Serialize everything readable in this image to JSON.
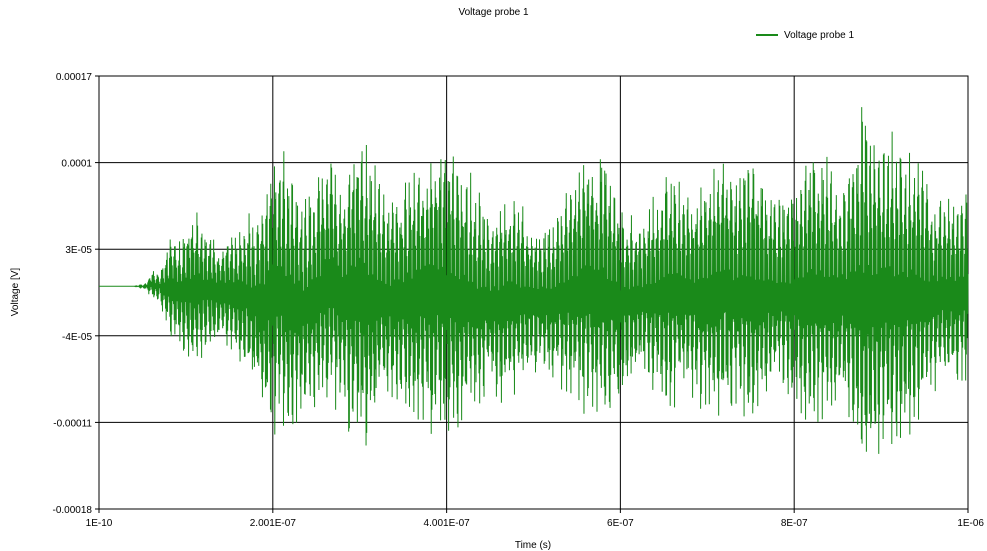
{
  "chart_data": {
    "type": "line",
    "title": "Voltage probe 1",
    "xlabel": "Time (s)",
    "ylabel": "Voltage [V]",
    "xlim": [
      1e-10,
      1e-06
    ],
    "ylim": [
      -0.00018,
      0.00017
    ],
    "x_ticks": [
      {
        "value": 1e-10,
        "label": "1E-10"
      },
      {
        "value": 2.001e-07,
        "label": "2.001E-07"
      },
      {
        "value": 4.001e-07,
        "label": "4.001E-07"
      },
      {
        "value": 6e-07,
        "label": "6E-07"
      },
      {
        "value": 8e-07,
        "label": "8E-07"
      },
      {
        "value": 1e-06,
        "label": "1E-06"
      }
    ],
    "y_ticks": [
      {
        "value": 0.00017,
        "label": "0.00017"
      },
      {
        "value": 0.0001,
        "label": "0.0001"
      },
      {
        "value": 3e-05,
        "label": "3E-05"
      },
      {
        "value": -4e-05,
        "label": "-4E-05"
      },
      {
        "value": -0.00011,
        "label": "-0.00011"
      },
      {
        "value": -0.00018,
        "label": "-0.00018"
      }
    ],
    "grid": true,
    "legend_position": "top-right",
    "series": [
      {
        "name": "Voltage probe 1",
        "color": "#1a8a1a",
        "envelope": {
          "x": [
            1e-10,
            4e-08,
            5e-08,
            5.5e-08,
            6e-08,
            6.5e-08,
            7e-08,
            7.5e-08,
            8.5e-08,
            9.5e-08,
            1.05e-07,
            1.1e-07,
            1.2e-07,
            1.35e-07,
            1.5e-07,
            1.65e-07,
            1.85e-07,
            2.05e-07,
            2.2e-07,
            2.35e-07,
            2.5e-07,
            2.65e-07,
            2.8e-07,
            3e-07,
            3.15e-07,
            3.3e-07,
            3.5e-07,
            3.7e-07,
            3.9e-07,
            4.1e-07,
            4.3e-07,
            4.5e-07,
            4.65e-07,
            4.8e-07,
            5e-07,
            5.2e-07,
            5.4e-07,
            5.6e-07,
            5.8e-07,
            6e-07,
            6.2e-07,
            6.4e-07,
            6.6e-07,
            6.8e-07,
            7e-07,
            7.2e-07,
            7.35e-07,
            7.5e-07,
            7.65e-07,
            7.8e-07,
            8e-07,
            8.2e-07,
            8.4e-07,
            8.6e-07,
            8.8e-07,
            8.9e-07,
            9e-07,
            9.2e-07,
            9.4e-07,
            9.6e-07,
            9.8e-07,
            1e-06
          ],
          "upper": [
            0.0,
            0.0,
            1e-06,
            4e-06,
            1.4e-05,
            1.2e-05,
            1e-05,
            2.5e-05,
            5e-05,
            4e-05,
            6e-05,
            6.5e-05,
            5.5e-05,
            4e-05,
            4.5e-05,
            5.5e-05,
            7e-05,
            0.000125,
            0.0001,
            8e-05,
            8.5e-05,
            0.00012,
            9e-05,
            0.00014,
            0.000105,
            7e-05,
            9e-05,
            0.00011,
            0.000125,
            0.000115,
            9e-05,
            6e-05,
            8e-05,
            7.5e-05,
            5e-05,
            6e-05,
            8e-05,
            0.000115,
            0.000115,
            7e-05,
            5.5e-05,
            8e-05,
            0.000105,
            8e-05,
            0.0001,
            0.000115,
            9e-05,
            0.00012,
            9e-05,
            7e-05,
            9e-05,
            0.00012,
            0.000105,
            9e-05,
            0.00016,
            0.000135,
            0.00013,
            0.000125,
            0.00011,
            8e-05,
            7.5e-05,
            8e-05
          ],
          "lower": [
            0.0,
            0.0,
            -1e-06,
            -4e-06,
            -1e-05,
            -1.2e-05,
            -1e-05,
            -3e-05,
            -5e-05,
            -5e-05,
            -6.5e-05,
            -7e-05,
            -6e-05,
            -5e-05,
            -5.5e-05,
            -6.5e-05,
            -0.0001,
            -0.000125,
            -0.00012,
            -0.00011,
            -0.000105,
            -0.0001,
            -0.000105,
            -0.000145,
            -0.000125,
            -9e-05,
            -0.000105,
            -0.00012,
            -0.000125,
            -0.000125,
            -0.00011,
            -8.5e-05,
            -0.0001,
            -9e-05,
            -7e-05,
            -8e-05,
            -9e-05,
            -0.00011,
            -0.000115,
            -9e-05,
            -7e-05,
            -9e-05,
            -0.000105,
            -9e-05,
            -0.00011,
            -0.00011,
            -0.0001,
            -0.000125,
            -0.0001,
            -8e-05,
            -0.0001,
            -0.00012,
            -0.00011,
            -0.0001,
            -0.000168,
            -0.000145,
            -0.00014,
            -0.000135,
            -0.00012,
            -9e-05,
            -8.5e-05,
            -8e-05
          ]
        }
      }
    ]
  }
}
